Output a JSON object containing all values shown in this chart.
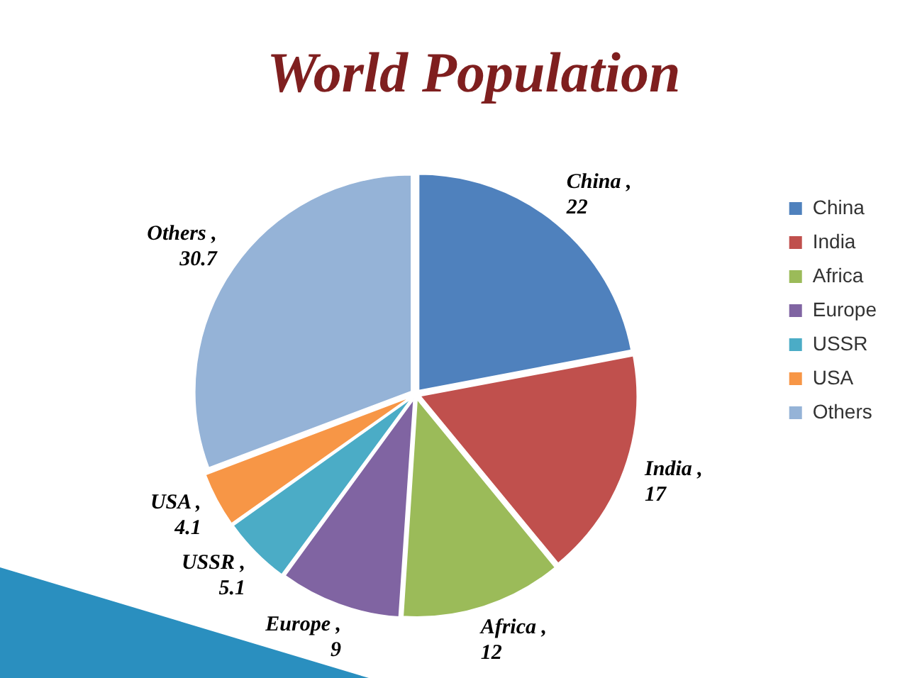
{
  "chart_data": {
    "type": "pie",
    "title": "World Population",
    "categories": [
      "China",
      "India",
      "Africa",
      "Europe",
      "USSR",
      "USA",
      "Others"
    ],
    "values": [
      22,
      17,
      12,
      9,
      5.1,
      4.1,
      30.7
    ],
    "colors": [
      "#4f81bd",
      "#c0504d",
      "#9bbb59",
      "#8064a2",
      "#4bacc6",
      "#f79646",
      "#95b3d7"
    ],
    "value_labels": [
      "China , 22",
      "India , 17",
      "Africa , 12",
      "Europe , 9",
      "USSR , 5.1",
      "USA , 4.1",
      "Others , 30.7"
    ],
    "legend": "right"
  }
}
